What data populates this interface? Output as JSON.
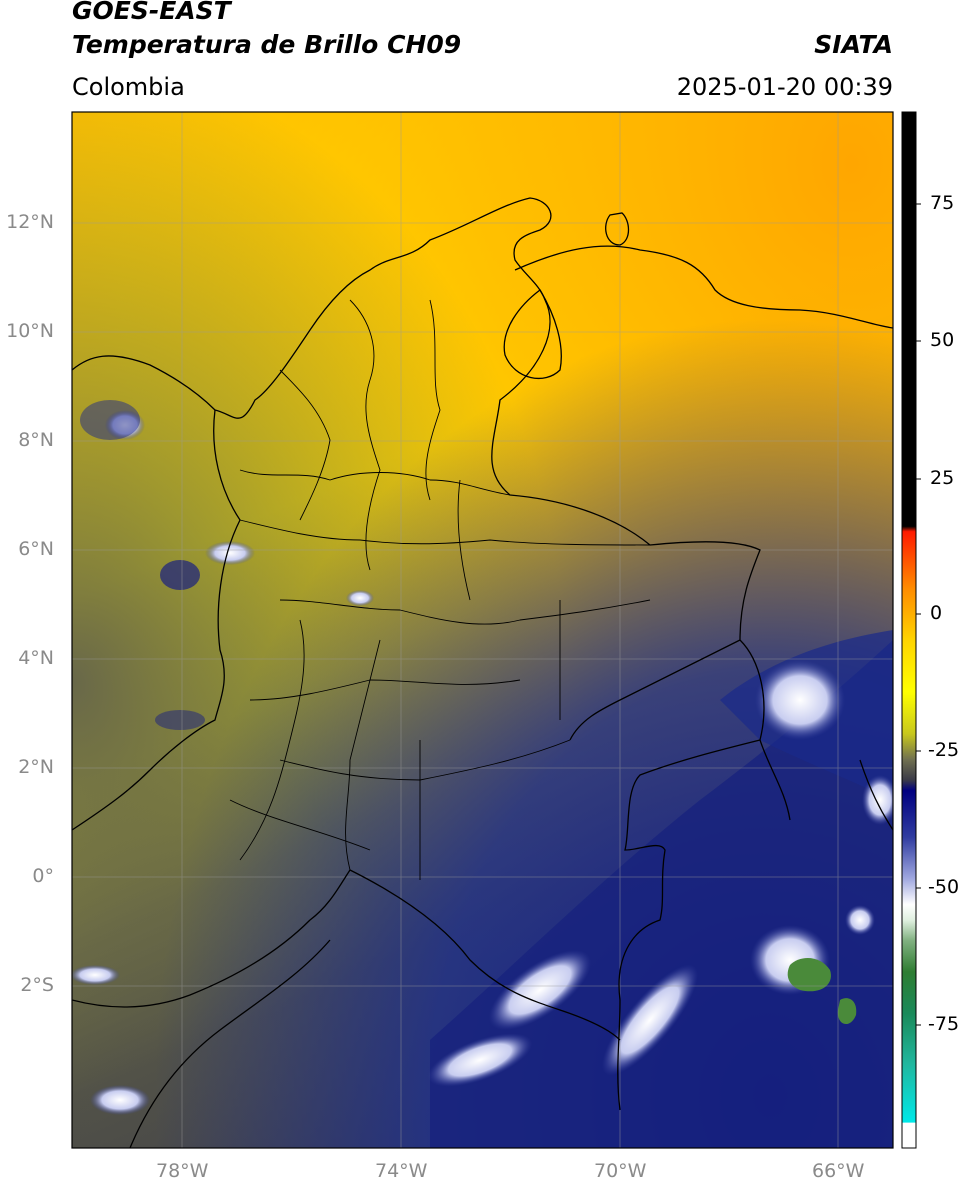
{
  "header": {
    "satellite": "GOES-EAST",
    "product": "Temperatura de Brillo CH09",
    "region": "Colombia",
    "agency": "SIATA",
    "datetime": "2025-01-20 00:39"
  },
  "axes": {
    "lat_labels": [
      "12°N",
      "10°N",
      "8°N",
      "6°N",
      "4°N",
      "2°N",
      "0°",
      "2°S"
    ],
    "lon_labels": [
      "78°W",
      "74°W",
      "70°W",
      "66°W"
    ],
    "lon_range": [
      -80,
      -65
    ],
    "lat_range": [
      -5,
      14
    ],
    "gridlines": true
  },
  "colorbar": {
    "ticks": [
      "75",
      "50",
      "25",
      "0",
      "-25",
      "-50",
      "-75"
    ],
    "range": [
      -95,
      90
    ],
    "colors": {
      "warm_black": "#000000",
      "red": "#ff1a00",
      "orange": "#ffa500",
      "yellow": "#ffff00",
      "olive": "#4a4a3a",
      "navy": "#000080",
      "white": "#ffffff",
      "green": "#2e7d32",
      "cyan": "#00e0e0"
    }
  }
}
